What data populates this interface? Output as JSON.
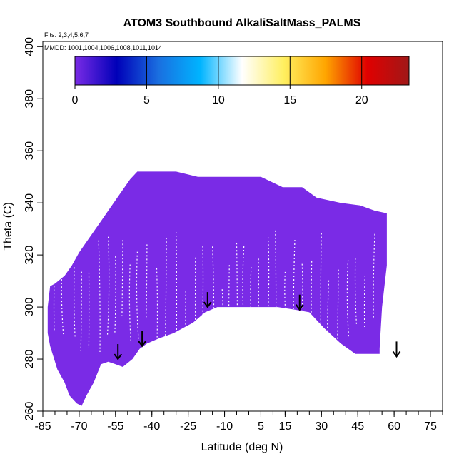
{
  "chart_data": {
    "type": "heatmap",
    "title": "ATOM3 Southbound AlkaliSaltMass_PALMS",
    "flights_label": "Flts: 2,3,4,5,6,7",
    "dates_label": "MMDD: 1001,1004,1006,1008,1011,1014",
    "xlabel": "Latitude (deg N)",
    "ylabel": "Theta (C)",
    "xlim": [
      -85,
      80
    ],
    "ylim": [
      260,
      402
    ],
    "x_ticks": [
      -85,
      -70,
      -55,
      -40,
      -25,
      -10,
      5,
      15,
      30,
      45,
      60,
      75
    ],
    "x_ticks_labels": [
      "-85",
      "-70",
      "-55",
      "-40",
      "-25",
      "-10",
      "5",
      "15",
      "30",
      "45",
      "60",
      "75"
    ],
    "x_minor_step": 5,
    "y_ticks": [
      260,
      280,
      300,
      320,
      340,
      360,
      380,
      400
    ],
    "y_ticks_labels": [
      "260",
      "280",
      "300",
      "320",
      "340",
      "360",
      "380",
      "400"
    ],
    "colorbar": {
      "range": [
        0,
        23.3
      ],
      "ticks": [
        0,
        5,
        10,
        15,
        20
      ],
      "tick_labels": [
        "0",
        "5",
        "10",
        "15",
        "20"
      ],
      "colors": [
        "#7a2be6",
        "#0000b8",
        "#1a6fe0",
        "#00b4ff",
        "#ffffff",
        "#ffef60",
        "#ffa500",
        "#e00000",
        "#a01818"
      ]
    },
    "fill_color": "#7a2be6",
    "upper_envelope": [
      [
        -82,
        308
      ],
      [
        -80,
        309
      ],
      [
        -76,
        312
      ],
      [
        -73,
        316
      ],
      [
        -70,
        321
      ],
      [
        -67,
        325
      ],
      [
        -64,
        329
      ],
      [
        -61,
        333
      ],
      [
        -58,
        337
      ],
      [
        -55,
        341
      ],
      [
        -52,
        345
      ],
      [
        -49,
        349
      ],
      [
        -46,
        352
      ],
      [
        -43,
        352
      ],
      [
        -40,
        352
      ],
      [
        -30,
        352
      ],
      [
        -21,
        350
      ],
      [
        -10,
        350
      ],
      [
        5,
        350
      ],
      [
        14,
        346
      ],
      [
        22,
        346
      ],
      [
        28,
        342
      ],
      [
        38,
        340
      ],
      [
        46,
        339
      ],
      [
        52,
        337
      ],
      [
        57,
        336
      ]
    ],
    "lower_envelope": [
      [
        57,
        316
      ],
      [
        55,
        300
      ],
      [
        54,
        284
      ],
      [
        54,
        282
      ],
      [
        44,
        282
      ],
      [
        38,
        286
      ],
      [
        31,
        292
      ],
      [
        25,
        298
      ],
      [
        19,
        299
      ],
      [
        12,
        300
      ],
      [
        0,
        300
      ],
      [
        -8,
        300
      ],
      [
        -13,
        300
      ],
      [
        -18,
        298
      ],
      [
        -23,
        294
      ],
      [
        -27,
        292
      ],
      [
        -31,
        290
      ],
      [
        -37,
        288
      ],
      [
        -42,
        286
      ],
      [
        -45,
        284
      ],
      [
        -48,
        280
      ],
      [
        -52,
        277
      ],
      [
        -55,
        278
      ],
      [
        -58,
        279
      ],
      [
        -61,
        278
      ],
      [
        -64,
        271
      ],
      [
        -67,
        266
      ],
      [
        -69,
        262
      ],
      [
        -71,
        263
      ],
      [
        -74,
        266
      ],
      [
        -76,
        271
      ],
      [
        -79,
        276
      ],
      [
        -82,
        285
      ],
      [
        -83,
        290
      ],
      [
        -83,
        300
      ]
    ],
    "arrows": [
      [
        -54,
        280
      ],
      [
        -44,
        285
      ],
      [
        -17,
        300
      ],
      [
        21,
        299
      ],
      [
        61,
        281
      ]
    ],
    "streak_latitudes": [
      -80,
      -77,
      -72,
      -69,
      -66,
      -62,
      -58,
      -55,
      -52,
      -49,
      -46,
      -42,
      -38,
      -34,
      -30,
      -26,
      -22,
      -19,
      -15,
      -11,
      -8,
      -5,
      -2,
      1,
      4,
      8,
      11,
      15,
      19,
      22,
      26,
      30,
      33,
      37,
      41,
      44,
      48,
      52
    ]
  }
}
